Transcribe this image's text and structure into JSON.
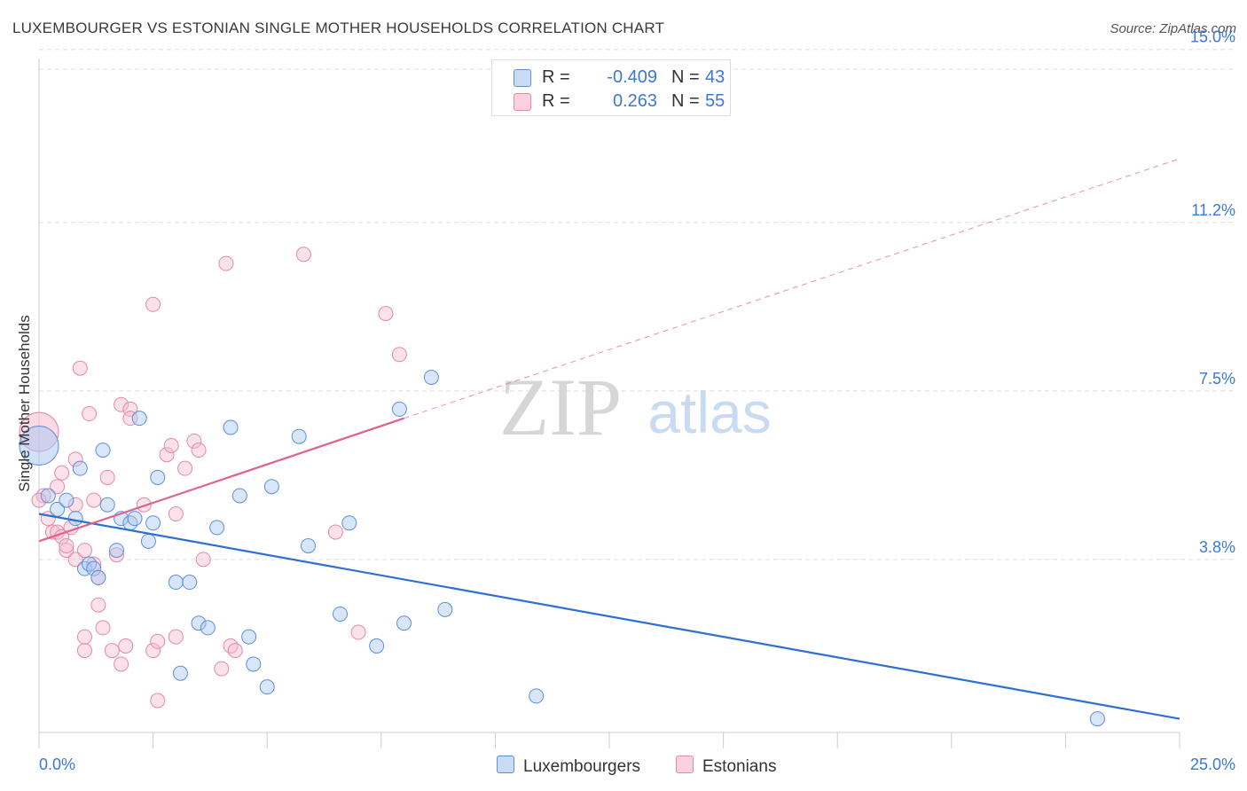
{
  "header": {
    "title": "LUXEMBOURGER VS ESTONIAN SINGLE MOTHER HOUSEHOLDS CORRELATION CHART",
    "source": "Source: ZipAtlas.com"
  },
  "watermark": {
    "zip": "ZIP",
    "atlas": "atlas"
  },
  "legend": {
    "r_label": "R =",
    "n_label": "N =",
    "rows": [
      {
        "r": "-0.409",
        "n": "43"
      },
      {
        "r": "0.263",
        "n": "55"
      }
    ]
  },
  "bottom_legend": [
    "Luxembourgers",
    "Estonians"
  ],
  "colors": {
    "blue_fill": "#aac8f2",
    "blue_stroke": "#5b8fd9",
    "blue_line": "#2d6fd2",
    "pink_fill": "#f7bccd",
    "pink_stroke": "#e48aa6",
    "pink_line": "#e0618a",
    "axis_text": "#3b78d8",
    "grid": "#dddddd"
  },
  "chart_data": {
    "type": "scatter",
    "title": "LUXEMBOURGER VS ESTONIAN SINGLE MOTHER HOUSEHOLDS CORRELATION CHART",
    "xlabel": "",
    "ylabel": "Single Mother Households",
    "xlim": [
      0,
      25
    ],
    "ylim": [
      0,
      16.2
    ],
    "x_ticks_labels": [
      "0.0%",
      "25.0%"
    ],
    "y_ticks": [
      3.8,
      7.5,
      11.2,
      15.0
    ],
    "y_tick_labels": [
      "3.8%",
      "7.5%",
      "11.2%",
      "15.0%"
    ],
    "grid": true,
    "legend_position": "top-center",
    "series": [
      {
        "name": "Luxembourgers",
        "r": -0.409,
        "n": 43,
        "trend": {
          "x0": 0,
          "y0": 4.8,
          "x1": 25,
          "y1": 0.3
        },
        "points": [
          [
            0.0,
            6.3
          ],
          [
            0.2,
            5.2
          ],
          [
            0.4,
            4.9
          ],
          [
            0.6,
            5.1
          ],
          [
            0.8,
            4.7
          ],
          [
            0.9,
            5.8
          ],
          [
            1.0,
            3.6
          ],
          [
            1.1,
            3.7
          ],
          [
            1.2,
            3.6
          ],
          [
            1.3,
            3.4
          ],
          [
            1.4,
            6.2
          ],
          [
            1.5,
            5.0
          ],
          [
            1.7,
            4.0
          ],
          [
            1.8,
            4.7
          ],
          [
            2.0,
            4.6
          ],
          [
            2.1,
            4.7
          ],
          [
            2.4,
            4.2
          ],
          [
            2.5,
            4.6
          ],
          [
            2.2,
            6.9
          ],
          [
            2.6,
            5.6
          ],
          [
            3.0,
            3.3
          ],
          [
            3.3,
            3.3
          ],
          [
            3.5,
            2.4
          ],
          [
            3.7,
            2.3
          ],
          [
            3.1,
            1.3
          ],
          [
            3.9,
            4.5
          ],
          [
            4.2,
            6.7
          ],
          [
            4.4,
            5.2
          ],
          [
            4.6,
            2.1
          ],
          [
            4.7,
            1.5
          ],
          [
            5.0,
            1.0
          ],
          [
            5.1,
            5.4
          ],
          [
            5.7,
            6.5
          ],
          [
            5.9,
            4.1
          ],
          [
            6.6,
            2.6
          ],
          [
            6.8,
            4.6
          ],
          [
            7.4,
            1.9
          ],
          [
            7.9,
            7.1
          ],
          [
            8.0,
            2.4
          ],
          [
            8.6,
            7.8
          ],
          [
            8.9,
            2.7
          ],
          [
            10.9,
            0.8
          ],
          [
            23.2,
            0.3
          ]
        ]
      },
      {
        "name": "Estonians",
        "r": 0.263,
        "n": 55,
        "trend": {
          "x0": 0,
          "y0": 4.2,
          "x1": 8.0,
          "y1": 6.9,
          "dash_to_x": 25,
          "dash_to_y": 12.6
        },
        "points": [
          [
            0.0,
            6.6
          ],
          [
            0.1,
            5.2
          ],
          [
            0.2,
            4.7
          ],
          [
            0.3,
            4.4
          ],
          [
            0.4,
            4.4
          ],
          [
            0.4,
            5.4
          ],
          [
            0.5,
            5.7
          ],
          [
            0.5,
            4.3
          ],
          [
            0.6,
            4.0
          ],
          [
            0.6,
            4.1
          ],
          [
            0.7,
            4.5
          ],
          [
            0.8,
            6.0
          ],
          [
            0.8,
            3.8
          ],
          [
            0.8,
            5.0
          ],
          [
            0.9,
            8.0
          ],
          [
            1.0,
            1.8
          ],
          [
            1.0,
            4.0
          ],
          [
            1.0,
            2.1
          ],
          [
            1.1,
            7.0
          ],
          [
            1.2,
            3.7
          ],
          [
            1.2,
            5.1
          ],
          [
            1.3,
            2.8
          ],
          [
            1.3,
            3.4
          ],
          [
            1.4,
            2.3
          ],
          [
            1.5,
            5.6
          ],
          [
            1.6,
            1.8
          ],
          [
            1.7,
            3.9
          ],
          [
            1.8,
            7.2
          ],
          [
            1.8,
            1.5
          ],
          [
            1.9,
            1.9
          ],
          [
            2.0,
            7.1
          ],
          [
            2.0,
            6.9
          ],
          [
            2.3,
            5.0
          ],
          [
            2.5,
            9.4
          ],
          [
            2.5,
            1.8
          ],
          [
            2.6,
            0.7
          ],
          [
            2.6,
            2.0
          ],
          [
            2.8,
            6.1
          ],
          [
            2.9,
            6.3
          ],
          [
            3.0,
            4.8
          ],
          [
            3.2,
            5.8
          ],
          [
            3.4,
            6.4
          ],
          [
            3.5,
            6.2
          ],
          [
            3.0,
            2.1
          ],
          [
            3.6,
            3.8
          ],
          [
            4.0,
            1.4
          ],
          [
            4.1,
            10.3
          ],
          [
            4.2,
            1.9
          ],
          [
            4.3,
            1.8
          ],
          [
            5.8,
            10.5
          ],
          [
            6.5,
            4.4
          ],
          [
            7.0,
            2.2
          ],
          [
            7.6,
            9.2
          ],
          [
            7.9,
            8.3
          ],
          [
            0.0,
            5.1
          ]
        ]
      }
    ]
  }
}
